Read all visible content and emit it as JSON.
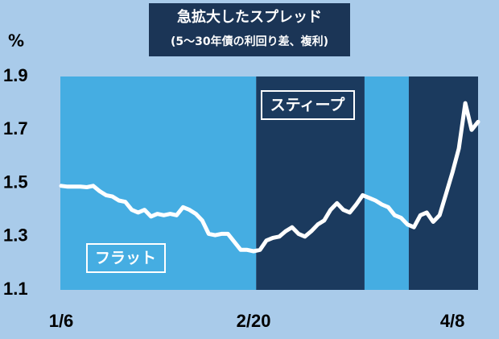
{
  "chart_data": {
    "type": "line",
    "title": "急拡大したスプレッド",
    "subtitle": "(5～30年債の利回り差、複利)",
    "y_unit": "%",
    "categories": [
      "1/6",
      null,
      null,
      null,
      null,
      null,
      null,
      null,
      null,
      null,
      null,
      null,
      null,
      null,
      null,
      null,
      null,
      null,
      null,
      null,
      null,
      null,
      null,
      null,
      null,
      null,
      null,
      null,
      null,
      null,
      "2/20",
      null,
      null,
      null,
      null,
      null,
      null,
      null,
      null,
      null,
      null,
      null,
      null,
      null,
      null,
      null,
      null,
      null,
      null,
      null,
      null,
      null,
      null,
      null,
      null,
      null,
      null,
      null,
      null,
      null,
      null,
      "4/8",
      null,
      null,
      null,
      null
    ],
    "series": [
      {
        "color": "#ffffff",
        "values": [
          1.49,
          1.487,
          1.487,
          1.487,
          1.485,
          1.49,
          1.47,
          1.455,
          1.45,
          1.435,
          1.43,
          1.4,
          1.39,
          1.4,
          1.375,
          1.385,
          1.38,
          1.385,
          1.38,
          1.41,
          1.4,
          1.385,
          1.36,
          1.31,
          1.305,
          1.31,
          1.31,
          1.28,
          1.25,
          1.25,
          1.245,
          1.25,
          1.285,
          1.295,
          1.3,
          1.32,
          1.335,
          1.31,
          1.3,
          1.32,
          1.345,
          1.36,
          1.4,
          1.425,
          1.4,
          1.39,
          1.42,
          1.455,
          1.445,
          1.435,
          1.42,
          1.41,
          1.38,
          1.37,
          1.345,
          1.335,
          1.38,
          1.39,
          1.355,
          1.38,
          1.46,
          1.54,
          1.63,
          1.8,
          1.7,
          1.73
        ]
      }
    ],
    "ylim": [
      1.1,
      1.9
    ],
    "yticks": [
      1.1,
      1.3,
      1.5,
      1.7,
      1.9
    ],
    "bands": [
      {
        "from": 0,
        "to": 30.4,
        "color": "#45ade2"
      },
      {
        "from": 30.4,
        "to": 47.3,
        "color": "#1b3a5e"
      },
      {
        "from": 47.3,
        "to": 54.2,
        "color": "#45ade2"
      },
      {
        "from": 54.2,
        "to": 65,
        "color": "#1b3a5e"
      }
    ],
    "annotations": [
      "フラット",
      "スティープ"
    ]
  }
}
